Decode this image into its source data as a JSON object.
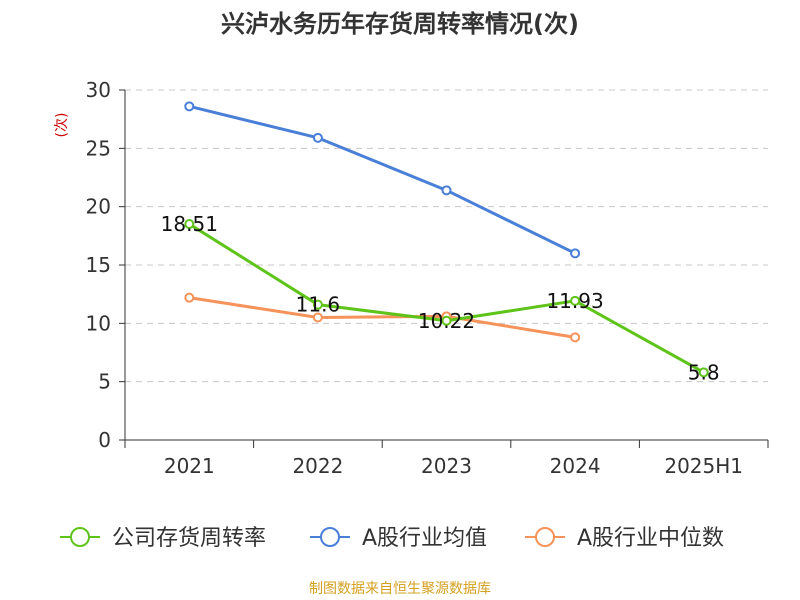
{
  "chart_data": {
    "type": "line",
    "title": "兴泸水务历年存货周转率情况(次)",
    "ylabel": "(次)",
    "xlabel": "",
    "categories": [
      "2021",
      "2022",
      "2023",
      "2024",
      "2025H1"
    ],
    "ylim": [
      0,
      30
    ],
    "yticks": [
      0,
      5,
      10,
      15,
      20,
      25,
      30
    ],
    "grid": true,
    "legend_position": "bottom",
    "series": [
      {
        "name": "公司存货周转率",
        "color": "#5ec41a",
        "values": [
          18.51,
          11.6,
          10.22,
          11.93,
          5.8
        ],
        "data_labels": [
          "18.51",
          "11.6",
          "10.22",
          "11.93",
          "5.8"
        ]
      },
      {
        "name": "A股行业均值",
        "color": "#4a7fd8",
        "values": [
          28.6,
          25.9,
          21.4,
          16.0,
          null
        ]
      },
      {
        "name": "A股行业中位数",
        "color": "#f5935a",
        "values": [
          12.2,
          10.5,
          10.6,
          8.8,
          null
        ]
      }
    ],
    "source": "制图数据来自恒生聚源数据库"
  }
}
